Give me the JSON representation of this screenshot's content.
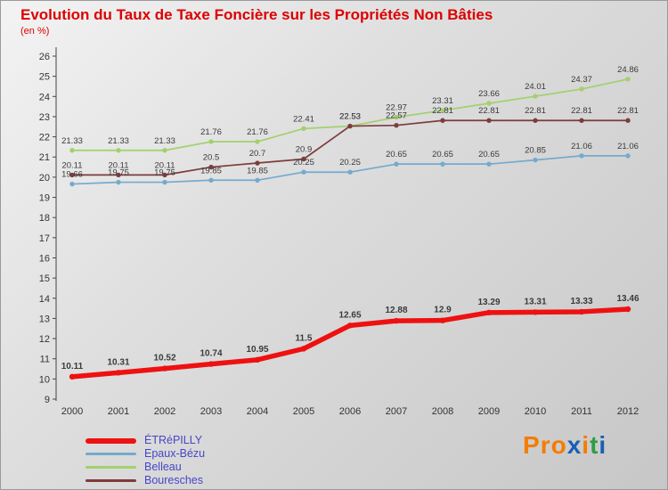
{
  "header": {
    "title": "Evolution du Taux de Taxe Foncière sur les Propriétés Non Bâties",
    "subtitle": "(en %)"
  },
  "colors": {
    "title_red": "#dd0000",
    "legend_text_blue": "#4646c8",
    "axis": "#444444",
    "data_label": "#3a3a3a"
  },
  "logo": {
    "text": "Proxiti",
    "letters": [
      {
        "ch": "P",
        "color": "#f57c00"
      },
      {
        "ch": "r",
        "color": "#f57c00"
      },
      {
        "ch": "o",
        "color": "#f57c00"
      },
      {
        "ch": "x",
        "color": "#1a5fb4"
      },
      {
        "ch": "i",
        "color": "#f57c00"
      },
      {
        "ch": "t",
        "color": "#2e9e44"
      },
      {
        "ch": "i",
        "color": "#1a5fb4"
      }
    ]
  },
  "chart_data": {
    "type": "line",
    "title": "Evolution du Taux de Taxe Foncière sur les Propriétés Non Bâties",
    "ylabel": "en %",
    "xlabel": "",
    "x": [
      2000,
      2001,
      2002,
      2003,
      2004,
      2005,
      2006,
      2007,
      2008,
      2009,
      2010,
      2011,
      2012
    ],
    "ylim": [
      9,
      26
    ],
    "yticks": [
      9,
      10,
      11,
      12,
      13,
      14,
      15,
      16,
      17,
      18,
      19,
      20,
      21,
      22,
      23,
      24,
      25,
      26
    ],
    "grid": false,
    "legend_position": "bottom-left",
    "series": [
      {
        "name": "ÉTRéPILLY",
        "color": "#ee1111",
        "thick": true,
        "values": [
          10.11,
          10.31,
          10.52,
          10.74,
          10.95,
          11.5,
          12.65,
          12.88,
          12.9,
          13.29,
          13.31,
          13.33,
          13.46
        ]
      },
      {
        "name": "Epaux-Bézu",
        "color": "#75aacd",
        "thick": false,
        "values": [
          19.66,
          19.75,
          19.75,
          19.85,
          19.85,
          20.25,
          20.25,
          20.65,
          20.65,
          20.65,
          20.85,
          21.06,
          21.06
        ]
      },
      {
        "name": "Belleau",
        "color": "#a2d06e",
        "thick": false,
        "values": [
          21.33,
          21.33,
          21.33,
          21.76,
          21.76,
          22.41,
          22.53,
          22.97,
          23.31,
          23.66,
          24.01,
          24.37,
          24.86
        ]
      },
      {
        "name": "Bouresches",
        "color": "#7d3c3c",
        "thick": false,
        "values": [
          20.11,
          20.11,
          20.11,
          20.5,
          20.7,
          20.9,
          22.53,
          22.57,
          22.81,
          22.81,
          22.81,
          22.81,
          22.81
        ]
      }
    ]
  }
}
